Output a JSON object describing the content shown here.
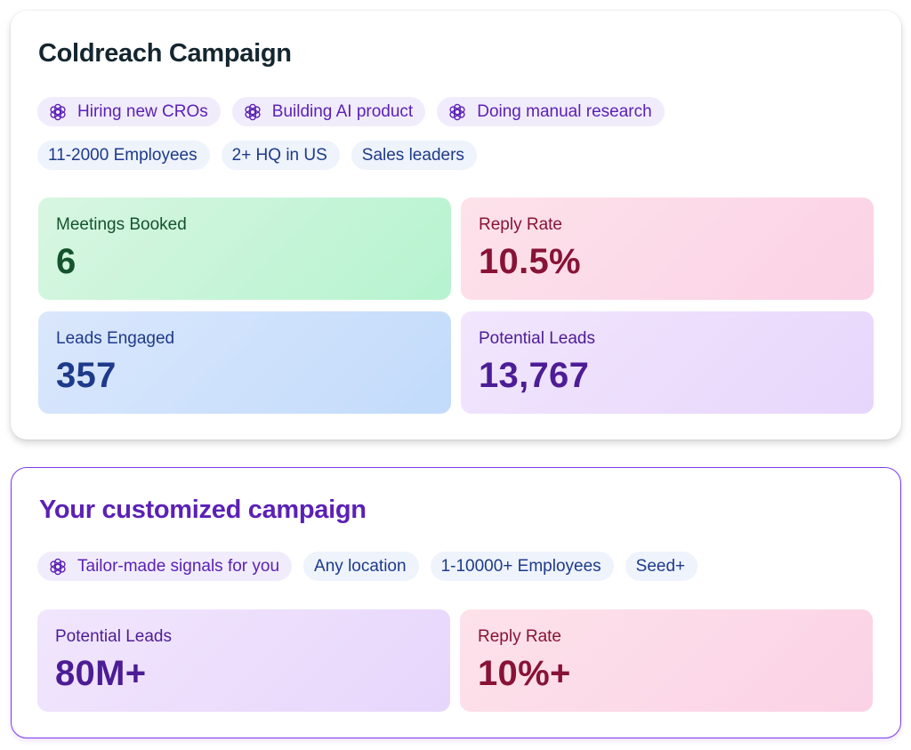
{
  "campaign": {
    "title": "Coldreach Campaign",
    "signal_chips": [
      "Hiring new CROs",
      "Building AI product",
      "Doing manual research"
    ],
    "filter_chips": [
      "11-2000 Employees",
      "2+ HQ in US",
      "Sales leaders"
    ],
    "metrics": {
      "meetings_booked": {
        "label": "Meetings Booked",
        "value": "6"
      },
      "reply_rate": {
        "label": "Reply Rate",
        "value": "10.5%"
      },
      "leads_engaged": {
        "label": "Leads Engaged",
        "value": "357"
      },
      "potential_leads": {
        "label": "Potential Leads",
        "value": "13,767"
      }
    }
  },
  "custom": {
    "title": "Your customized campaign",
    "signal_chip": "Tailor-made signals for you",
    "filter_chips": [
      "Any location",
      "1-10000+ Employees",
      "Seed+"
    ],
    "metrics": {
      "potential_leads": {
        "label": "Potential Leads",
        "value": "80M+"
      },
      "reply_rate": {
        "label": "Reply Rate",
        "value": "10%+"
      }
    }
  },
  "icons": {
    "signal": "ai-knot-icon"
  },
  "colors": {
    "accent": "#5b21b6",
    "border": "#7c3aed"
  }
}
